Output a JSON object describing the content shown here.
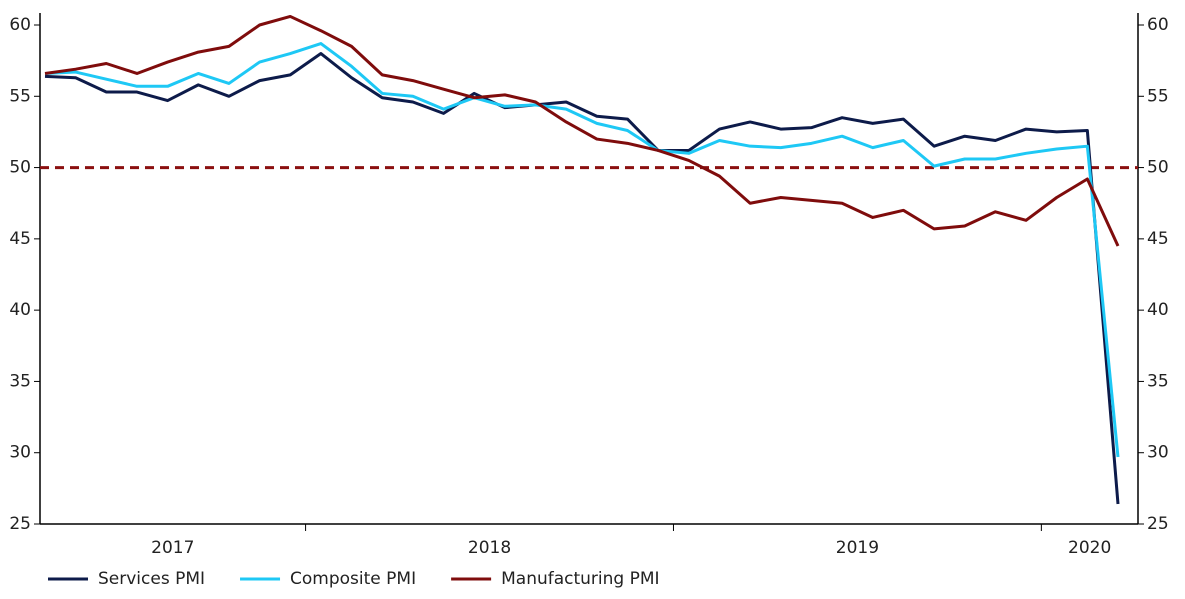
{
  "chart_data": {
    "type": "line",
    "categories": [
      null,
      null,
      null,
      null,
      null,
      null,
      null,
      null,
      null,
      null,
      null,
      null,
      null,
      null,
      null,
      null,
      null,
      null,
      null,
      null,
      null,
      null,
      null,
      null,
      null,
      null,
      null,
      null,
      null,
      null,
      null,
      null,
      null,
      null,
      null,
      null
    ],
    "xgroups": [
      {
        "label": "2017",
        "count": 9
      },
      {
        "label": "2018",
        "count": 12
      },
      {
        "label": "2019",
        "count": 12
      },
      {
        "label": "2020",
        "count": 3
      }
    ],
    "series": [
      {
        "name": "Services PMI",
        "color": "#0d1b4a",
        "values": [
          56.4,
          56.3,
          55.3,
          55.3,
          54.7,
          55.8,
          55.0,
          56.1,
          56.5,
          58.0,
          56.3,
          54.9,
          54.6,
          53.8,
          55.2,
          54.2,
          54.4,
          54.6,
          53.6,
          53.4,
          51.2,
          51.2,
          52.7,
          53.2,
          52.7,
          52.8,
          53.5,
          53.1,
          53.4,
          51.5,
          52.2,
          51.9,
          52.7,
          52.5,
          52.6,
          26.4
        ]
      },
      {
        "name": "Composite PMI",
        "color": "#1ec8f5",
        "values": [
          56.6,
          56.7,
          56.2,
          55.7,
          55.7,
          56.6,
          55.9,
          57.4,
          58.0,
          58.7,
          57.1,
          55.2,
          55.0,
          54.1,
          54.9,
          54.3,
          54.4,
          54.1,
          53.1,
          52.6,
          51.2,
          51.0,
          51.9,
          51.5,
          51.4,
          51.7,
          52.2,
          51.4,
          51.9,
          50.1,
          50.6,
          50.6,
          51.0,
          51.3,
          51.5,
          29.7
        ]
      },
      {
        "name": "Manufacturing PMI",
        "color": "#7f0c0c",
        "values": [
          56.6,
          56.9,
          57.3,
          56.6,
          57.4,
          58.1,
          58.5,
          60.0,
          60.6,
          59.6,
          58.5,
          56.5,
          56.1,
          55.5,
          54.9,
          55.1,
          54.6,
          53.2,
          52.0,
          51.7,
          51.2,
          50.5,
          49.4,
          47.5,
          47.9,
          47.7,
          47.5,
          46.5,
          47.0,
          45.7,
          45.9,
          46.9,
          46.3,
          47.9,
          49.2,
          44.5
        ]
      }
    ],
    "hline": {
      "value": 50,
      "color": "#8b1010"
    },
    "ylim": [
      25,
      60
    ],
    "yticks": [
      25,
      30,
      35,
      40,
      45,
      50,
      55,
      60
    ],
    "y2lim": [
      25,
      60
    ],
    "y2ticks": [
      25,
      30,
      35,
      40,
      45,
      50,
      55,
      60
    ],
    "legend": "bottom-left"
  }
}
